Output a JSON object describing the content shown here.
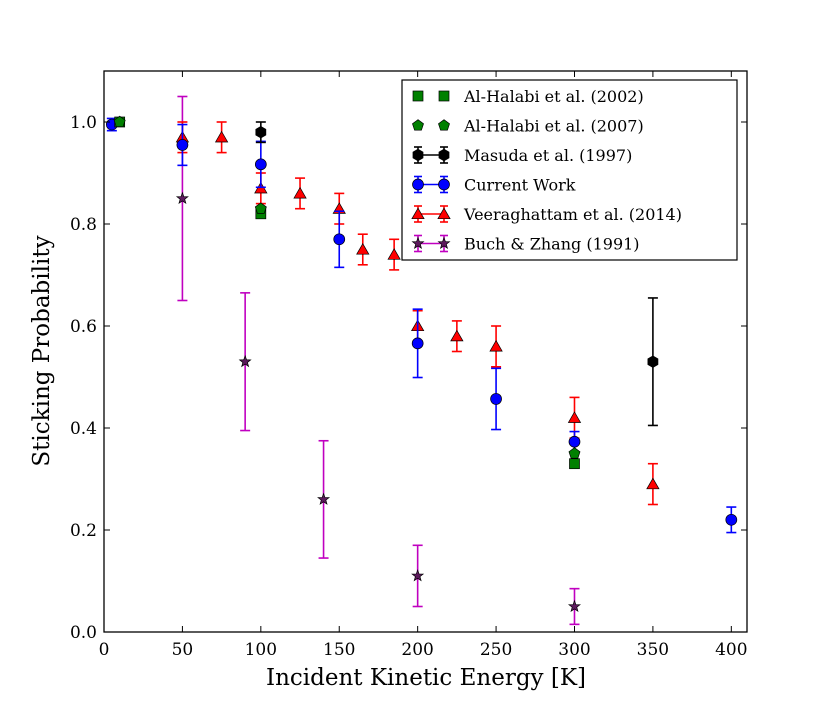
{
  "chart_data": {
    "type": "scatter",
    "title": "",
    "xlabel": "Incident Kinetic Energy [K]",
    "ylabel": "Sticking Probability",
    "xlim": [
      0,
      410
    ],
    "ylim": [
      0.0,
      1.1
    ],
    "xticks": [
      0,
      50,
      100,
      150,
      200,
      250,
      300,
      350,
      400
    ],
    "yticks": [
      0.0,
      0.2,
      0.4,
      0.6,
      0.8,
      1.0
    ],
    "xtick_labels": [
      "0",
      "50",
      "100",
      "150",
      "200",
      "250",
      "300",
      "350",
      "400"
    ],
    "ytick_labels": [
      "0.0",
      "0.2",
      "0.4",
      "0.6",
      "0.8",
      "1.0"
    ],
    "grid": false,
    "legend_position": "top-right",
    "series": [
      {
        "name": "Al-Halabi et al. (2002)",
        "marker": "square",
        "color": "#008000",
        "points": [
          {
            "x": 10,
            "y": 1.0
          },
          {
            "x": 100,
            "y": 0.82
          },
          {
            "x": 300,
            "y": 0.33
          }
        ]
      },
      {
        "name": "Al-Halabi et al. (2007)",
        "marker": "pentagon",
        "color": "#008000",
        "points": [
          {
            "x": 10,
            "y": 1.0
          },
          {
            "x": 100,
            "y": 0.83
          },
          {
            "x": 300,
            "y": 0.35
          }
        ]
      },
      {
        "name": "Masuda et al. (1997)",
        "marker": "hexagon",
        "color": "#000000",
        "points": [
          {
            "x": 100,
            "y": 0.98,
            "err": 0.02
          },
          {
            "x": 350,
            "y": 0.53,
            "err": 0.125
          }
        ]
      },
      {
        "name": "Current Work",
        "marker": "circle",
        "color": "#0000ff",
        "points": [
          {
            "x": 5,
            "y": 0.995,
            "err": 0.012
          },
          {
            "x": 50,
            "y": 0.955,
            "err": 0.04
          },
          {
            "x": 100,
            "y": 0.917,
            "err": 0.045
          },
          {
            "x": 150,
            "y": 0.77,
            "err": 0.055
          },
          {
            "x": 200,
            "y": 0.566,
            "err": 0.067
          },
          {
            "x": 250,
            "y": 0.457,
            "err": 0.06
          },
          {
            "x": 300,
            "y": 0.373,
            "err": 0.02
          },
          {
            "x": 400,
            "y": 0.22,
            "err": 0.025
          }
        ]
      },
      {
        "name": "Veeraghattam et al. (2014)",
        "marker": "triangle",
        "color": "#ff0000",
        "points": [
          {
            "x": 50,
            "y": 0.97,
            "err": 0.03
          },
          {
            "x": 75,
            "y": 0.97,
            "err": 0.03
          },
          {
            "x": 100,
            "y": 0.87,
            "err": 0.03
          },
          {
            "x": 125,
            "y": 0.86,
            "err": 0.03
          },
          {
            "x": 150,
            "y": 0.83,
            "err": 0.03
          },
          {
            "x": 165,
            "y": 0.75,
            "err": 0.03
          },
          {
            "x": 185,
            "y": 0.74,
            "err": 0.03
          },
          {
            "x": 200,
            "y": 0.6,
            "err": 0.03
          },
          {
            "x": 225,
            "y": 0.58,
            "err": 0.03
          },
          {
            "x": 250,
            "y": 0.56,
            "err": 0.04
          },
          {
            "x": 300,
            "y": 0.42,
            "err": 0.04
          },
          {
            "x": 350,
            "y": 0.29,
            "err": 0.04
          }
        ]
      },
      {
        "name": "Buch & Zhang (1991)",
        "marker": "star",
        "color": "#5c1a5c",
        "errcolor": "#c000c0",
        "points": [
          {
            "x": 50,
            "y": 0.85,
            "err": 0.2
          },
          {
            "x": 90,
            "y": 0.53,
            "err": 0.135
          },
          {
            "x": 140,
            "y": 0.26,
            "err": 0.115
          },
          {
            "x": 200,
            "y": 0.11,
            "err": 0.06
          },
          {
            "x": 300,
            "y": 0.05,
            "err": 0.035
          }
        ]
      }
    ]
  }
}
